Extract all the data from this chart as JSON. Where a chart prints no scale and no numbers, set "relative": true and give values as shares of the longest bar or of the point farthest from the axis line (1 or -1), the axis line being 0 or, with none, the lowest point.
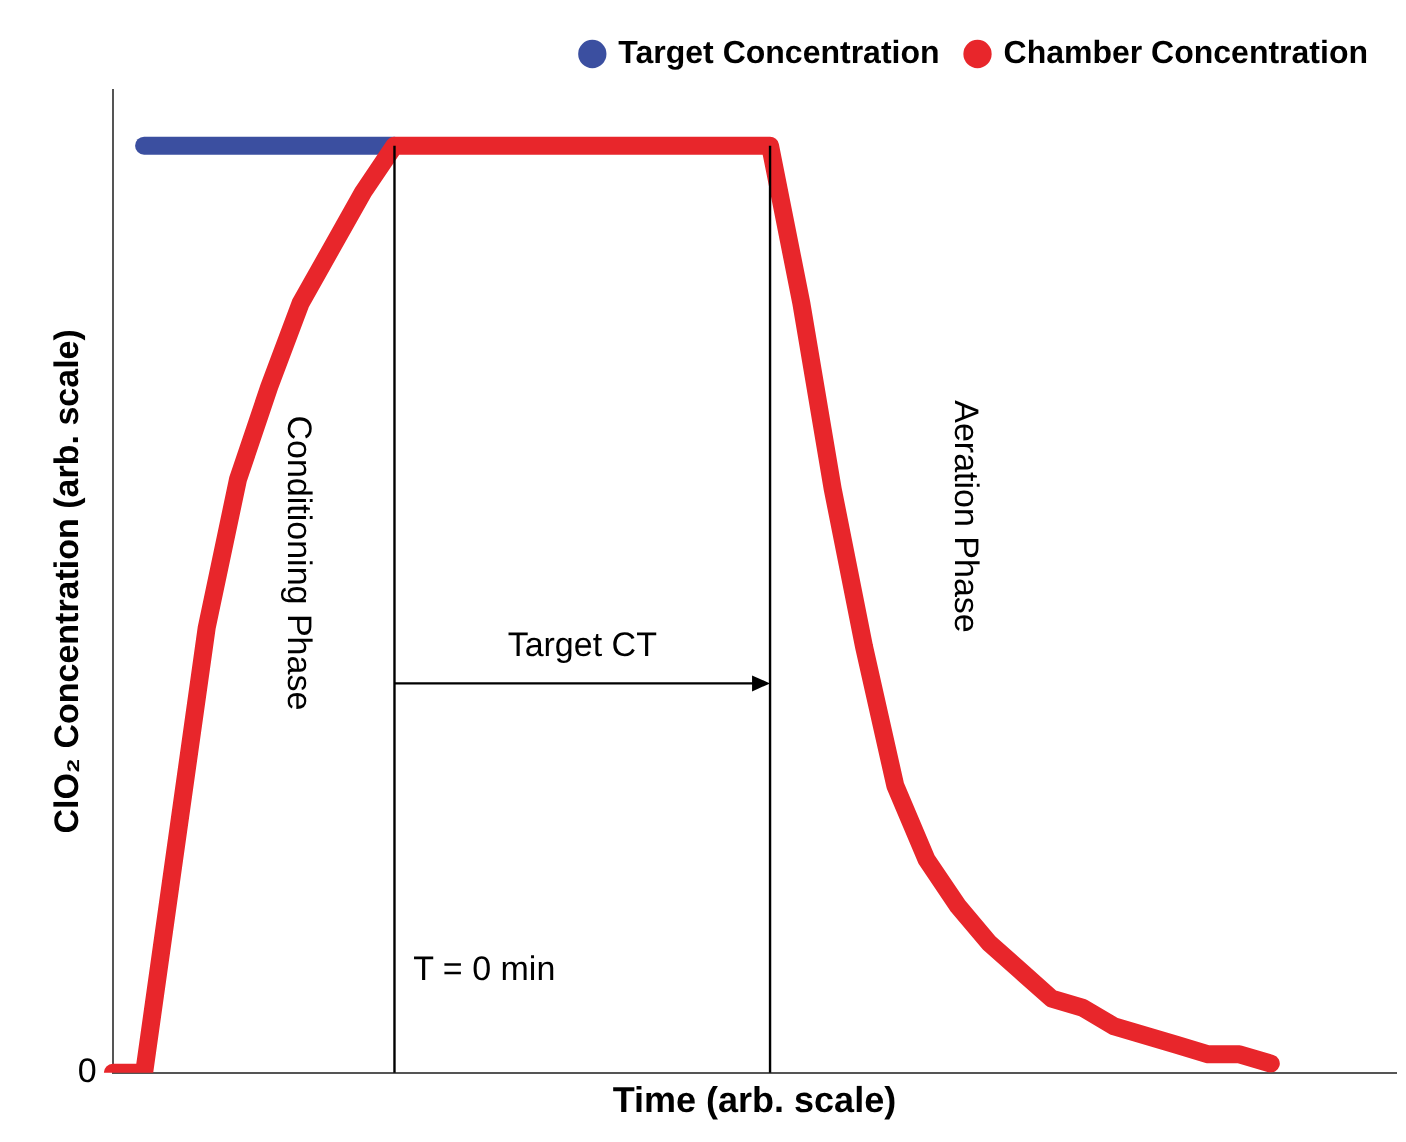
{
  "chart_data": {
    "type": "line",
    "relative": true,
    "xlabel": "Time (arb. scale)",
    "ylabel": "ClO₂ Concentration (arb. scale)",
    "categories": [
      null,
      null,
      null,
      null,
      null,
      null,
      null,
      null,
      null,
      null,
      null,
      null,
      null,
      null,
      null,
      null,
      null,
      null,
      null,
      null,
      null,
      null,
      null,
      null,
      null,
      null,
      null,
      null,
      null,
      null,
      null,
      null,
      null,
      null,
      null,
      null,
      null,
      null,
      null,
      null,
      null,
      null
    ],
    "series": [
      {
        "name": "Target Concentration",
        "color": "#3b4fa0",
        "values": [
          null,
          1,
          1,
          1,
          1,
          1,
          1,
          1,
          1,
          1,
          null,
          null,
          null,
          null,
          null,
          null,
          null,
          null,
          null,
          null,
          null,
          null,
          null,
          null,
          null,
          null,
          null,
          null,
          null,
          null,
          null,
          null,
          null,
          null,
          null,
          null,
          null,
          null,
          null,
          null,
          null,
          null
        ]
      },
      {
        "name": "Chamber Concentration",
        "color": "#e8262b",
        "values": [
          0,
          0,
          0.24,
          0.48,
          0.64,
          0.74,
          0.83,
          0.89,
          0.95,
          1,
          1,
          1,
          1,
          1,
          1,
          1,
          1,
          1,
          1,
          1,
          1,
          1,
          0.83,
          0.63,
          0.46,
          0.31,
          0.23,
          0.18,
          0.14,
          0.11,
          0.08,
          0.07,
          0.05,
          0.04,
          0.03,
          0.02,
          0.02,
          0.01,
          null,
          null,
          null,
          null
        ]
      }
    ],
    "annotations": [
      "0",
      "Conditioning Phase",
      "Aeration Phase",
      "Target CT",
      "T = 0 min"
    ],
    "legend": "top right",
    "grid": false
  }
}
